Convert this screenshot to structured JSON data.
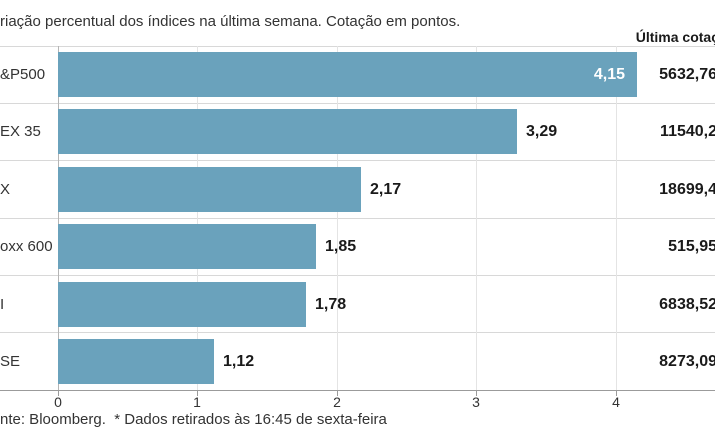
{
  "title": "riação percentual dos índices na última semana. Cotação em pontos.",
  "column_header": "Última cotaç",
  "footer": "nte: Bloomberg.  * Dados retirados às 16:45 de sexta-feira",
  "colors": {
    "bar": "#6aa2bc",
    "separator": "#d8d8d8",
    "axis": "#9b9b9b",
    "value_inside_text": "#ffffff",
    "value_outside_text": "#1a1a1a"
  },
  "chart_data": {
    "type": "bar",
    "orientation": "horizontal",
    "title": "riação percentual dos índices na última semana. Cotação em pontos.",
    "xlabel": "",
    "ylabel": "",
    "xlim": [
      0,
      4.71
    ],
    "xticks": [
      0,
      1,
      2,
      3,
      4
    ],
    "x_tick_labels": [
      "0",
      "1",
      "2",
      "3",
      "4"
    ],
    "grid": "light vertical gridlines at integer ticks; light horizontal separators between rows",
    "legend": "none",
    "rows": [
      {
        "label": "&P500",
        "value": 4.15,
        "value_label": "4,15",
        "last_quote": "5632,76",
        "value_inside": true
      },
      {
        "label": "EX 35",
        "value": 3.29,
        "value_label": "3,29",
        "last_quote": "11540,2",
        "value_inside": false
      },
      {
        "label": "X",
        "value": 2.17,
        "value_label": "2,17",
        "last_quote": "18699,4",
        "value_inside": false
      },
      {
        "label": "oxx 600",
        "value": 1.85,
        "value_label": "1,85",
        "last_quote": "515,95",
        "value_inside": false
      },
      {
        "label": "I",
        "value": 1.78,
        "value_label": "1,78",
        "last_quote": "6838,52",
        "value_inside": false
      },
      {
        "label": "SE",
        "value": 1.12,
        "value_label": "1,12",
        "last_quote": "8273,09",
        "value_inside": false
      }
    ]
  }
}
